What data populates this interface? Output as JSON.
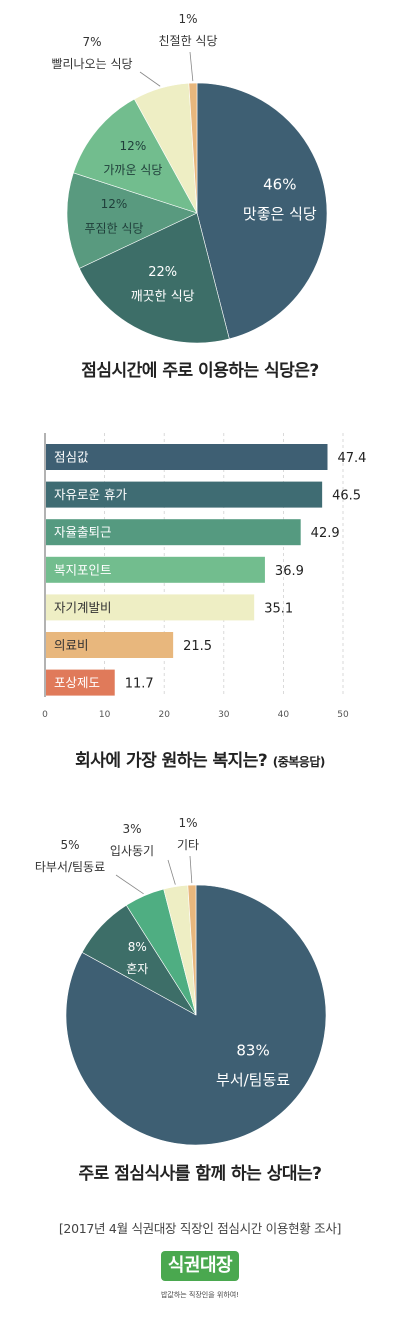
{
  "chart_data": [
    {
      "type": "pie",
      "title": "점심시간에 주로 이용하는 식당은?",
      "slices": [
        {
          "label": "맛좋은 식당",
          "value": 46,
          "value_text": "46%",
          "color": "#3e5f73"
        },
        {
          "label": "깨끗한 식당",
          "value": 22,
          "value_text": "22%",
          "color": "#3d6e68"
        },
        {
          "label": "푸짐한 식당",
          "value": 12,
          "value_text": "12%",
          "color": "#599a7f"
        },
        {
          "label": "가까운 식당",
          "value": 12,
          "value_text": "12%",
          "color": "#72bd8e"
        },
        {
          "label": "빨리나오는 식당",
          "value": 7,
          "value_text": "7%",
          "color": "#eeeec4"
        },
        {
          "label": "친절한 식당",
          "value": 1,
          "value_text": "1%",
          "color": "#e8b77d"
        }
      ]
    },
    {
      "type": "bar",
      "orientation": "horizontal",
      "title": "회사에 가장 원하는 복지는?",
      "subtitle": "(중복응답)",
      "categories": [
        "점심값",
        "자유로운 휴가",
        "자율출퇴근",
        "복지포인트",
        "자기계발비",
        "의료비",
        "포상제도"
      ],
      "values": [
        47.4,
        46.5,
        42.9,
        36.9,
        35.1,
        21.5,
        11.7
      ],
      "value_labels": [
        "47.4",
        "46.5",
        "42.9",
        "36.9",
        "35.1",
        "21.5",
        "11.7"
      ],
      "colors": [
        "#3e5f73",
        "#3f6c73",
        "#559a80",
        "#72bd8e",
        "#eeeec4",
        "#e8b77d",
        "#e07a5a"
      ],
      "label_colors": [
        "#ffffff",
        "#ffffff",
        "#ffffff",
        "#ffffff",
        "#333333",
        "#333333",
        "#ffffff"
      ],
      "xlim": [
        0,
        50
      ],
      "xticks": [
        0,
        10,
        20,
        30,
        40,
        50
      ],
      "grid": true
    },
    {
      "type": "pie",
      "title": "주로 점심식사를 함께 하는 상대는?",
      "slices": [
        {
          "label": "부서/팀동료",
          "value": 83,
          "value_text": "83%",
          "color": "#3e5f73"
        },
        {
          "label": "혼자",
          "value": 8,
          "value_text": "8%",
          "color": "#3d6e68"
        },
        {
          "label": "타부서/팀동료",
          "value": 5,
          "value_text": "5%",
          "color": "#4fae82"
        },
        {
          "label": "입사동기",
          "value": 3,
          "value_text": "3%",
          "color": "#eeeec4"
        },
        {
          "label": "기타",
          "value": 1,
          "value_text": "1%",
          "color": "#e8b77d"
        }
      ]
    }
  ],
  "footer": {
    "source": "[2017년 4월 식권대장 직장인 점심시간 이용현황 조사]",
    "logo_text": "식권대장",
    "tagline": "밥값하는 직장인을 위하여!"
  }
}
